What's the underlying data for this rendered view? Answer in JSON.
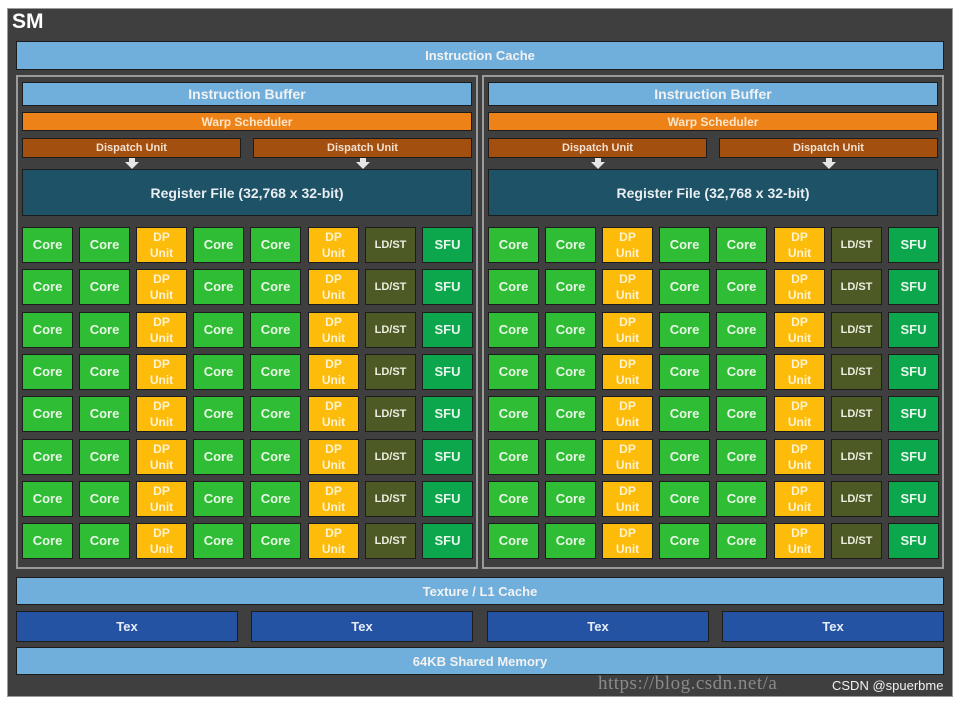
{
  "title": "SM",
  "instruction_cache": "Instruction Cache",
  "partitions": [
    {
      "instruction_buffer": "Instruction Buffer",
      "warp_scheduler": "Warp Scheduler",
      "dispatch_units": [
        "Dispatch Unit",
        "Dispatch Unit"
      ],
      "register_file": "Register File (32,768 x 32-bit)"
    },
    {
      "instruction_buffer": "Instruction Buffer",
      "warp_scheduler": "Warp Scheduler",
      "dispatch_units": [
        "Dispatch Unit",
        "Dispatch Unit"
      ],
      "register_file": "Register File (32,768 x 32-bit)"
    }
  ],
  "unit_row_pattern": [
    "Core",
    "Core",
    "DP Unit",
    "Core",
    "Core",
    "DP Unit",
    "LD/ST",
    "SFU"
  ],
  "rows_per_partition": 8,
  "labels": {
    "core": "Core",
    "dp_line1": "DP",
    "dp_line2": "Unit",
    "ldst": "LD/ST",
    "sfu": "SFU"
  },
  "texture_l1_cache": "Texture / L1 Cache",
  "tex_units": [
    "Tex",
    "Tex",
    "Tex",
    "Tex"
  ],
  "shared_memory": "64KB Shared Memory",
  "watermark": "https://blog.csdn.net/a",
  "credit": "CSDN @spuerbme",
  "colors": {
    "frame": "#3f3f3f",
    "light_blue": "#70afdc",
    "warp_orange": "#ed8219",
    "dispatch_brown": "#a24f10",
    "register_teal": "#1e5266",
    "core_green": "#2fbd35",
    "dp_yellow": "#fdbb0a",
    "ldst_olive": "#4e5a25",
    "sfu_green": "#0ca64c",
    "tex_blue": "#2553a3"
  }
}
